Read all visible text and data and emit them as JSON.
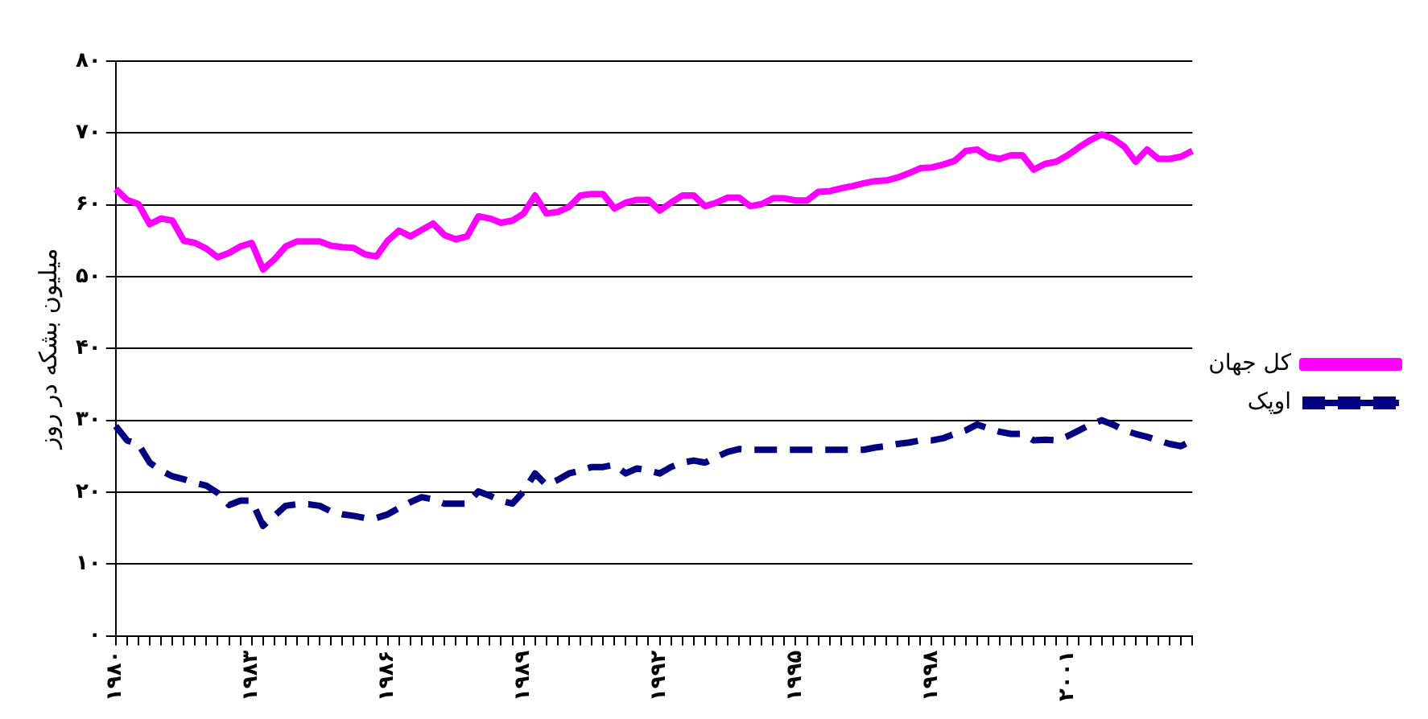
{
  "chart_data": {
    "type": "line",
    "ylabel": "میلیون بشکه در روز",
    "categories": [
      "۱۹۸۰",
      null,
      null,
      null,
      null,
      null,
      null,
      null,
      null,
      null,
      null,
      null,
      "۱۹۸۳",
      null,
      null,
      null,
      null,
      null,
      null,
      null,
      null,
      null,
      null,
      null,
      "۱۹۸۶",
      null,
      null,
      null,
      null,
      null,
      null,
      null,
      null,
      null,
      null,
      null,
      "۱۹۸۹",
      null,
      null,
      null,
      null,
      null,
      null,
      null,
      null,
      null,
      null,
      null,
      "۱۹۹۲",
      null,
      null,
      null,
      null,
      null,
      null,
      null,
      null,
      null,
      null,
      null,
      "۱۹۹۵",
      null,
      null,
      null,
      null,
      null,
      null,
      null,
      null,
      null,
      null,
      null,
      "۱۹۹۸",
      null,
      null,
      null,
      null,
      null,
      null,
      null,
      null,
      null,
      null,
      null,
      "۲۰۰۱",
      null,
      null,
      null,
      null,
      null,
      null,
      null,
      null,
      null,
      null,
      null
    ],
    "series": [
      {
        "name": "کل جهان",
        "color": "#ff00ff",
        "line_style": "solid",
        "values": [
          62.2,
          60.7,
          60.1,
          57.3,
          58.1,
          57.8,
          55,
          54.7,
          53.9,
          52.7,
          53.3,
          54.2,
          54.7,
          51,
          52.4,
          54.2,
          54.9,
          54.9,
          54.9,
          54.3,
          54.1,
          54,
          53.1,
          52.8,
          55,
          56.4,
          55.6,
          56.5,
          57.4,
          55.8,
          55.2,
          55.6,
          58.4,
          58.1,
          57.5,
          57.8,
          58.8,
          61.3,
          58.8,
          59,
          59.7,
          61.3,
          61.5,
          61.5,
          59.5,
          60.3,
          60.7,
          60.7,
          59.2,
          60.3,
          61.3,
          61.3,
          59.8,
          60.3,
          61,
          61,
          59.8,
          60.1,
          60.9,
          60.9,
          60.6,
          60.6,
          61.8,
          61.9,
          62.3,
          62.6,
          63,
          63.3,
          63.4,
          63.8,
          64.4,
          65.1,
          65.2,
          65.6,
          66.1,
          67.5,
          67.7,
          66.7,
          66.4,
          66.9,
          66.9,
          64.9,
          65.7,
          66,
          66.9,
          68,
          69,
          69.8,
          69.2,
          68.1,
          66,
          67.7,
          66.4,
          66.4,
          66.7,
          67.5
        ]
      },
      {
        "name": "اوپک",
        "color": "#000080",
        "line_style": "dashed",
        "values": [
          29.2,
          27.2,
          26.7,
          24.1,
          23,
          22.2,
          21.8,
          21.3,
          20.9,
          19.9,
          18.2,
          18.8,
          18.8,
          15.3,
          16.7,
          18.1,
          18.3,
          18.3,
          18.1,
          17.3,
          16.9,
          16.7,
          16.4,
          16.4,
          16.9,
          17.8,
          18.6,
          19.3,
          19,
          18.4,
          18.4,
          18.4,
          20.1,
          19.5,
          18.8,
          18.4,
          20.1,
          22.6,
          21,
          21.7,
          22.6,
          23,
          23.5,
          23.5,
          23.8,
          22.6,
          23.3,
          23,
          22.6,
          23.5,
          24.1,
          24.4,
          24.1,
          24.9,
          25.6,
          26,
          25.9,
          25.9,
          25.9,
          25.9,
          25.9,
          25.9,
          25.9,
          25.9,
          25.9,
          25.9,
          25.9,
          26.2,
          26.4,
          26.7,
          26.9,
          27.2,
          27.2,
          27.5,
          28.1,
          28.6,
          29.4,
          28.9,
          28.4,
          28.1,
          28.1,
          27.2,
          27.3,
          27.2,
          27.8,
          28.6,
          29.4,
          30,
          29.4,
          28.6,
          28.1,
          27.7,
          27.2,
          26.7,
          26.4,
          27.2
        ]
      }
    ],
    "ylim": [
      0,
      80
    ],
    "yticks": [
      {
        "value": 0,
        "label": "۰"
      },
      {
        "value": 10,
        "label": "۱۰"
      },
      {
        "value": 20,
        "label": "۲۰"
      },
      {
        "value": 30,
        "label": "۳۰"
      },
      {
        "value": 40,
        "label": "۴۰"
      },
      {
        "value": 50,
        "label": "۵۰"
      },
      {
        "value": 60,
        "label": "۶۰"
      },
      {
        "value": 70,
        "label": "۷۰"
      },
      {
        "value": 80,
        "label": "۸۰"
      }
    ],
    "grid": "y",
    "legend": "right",
    "marker": "none"
  }
}
